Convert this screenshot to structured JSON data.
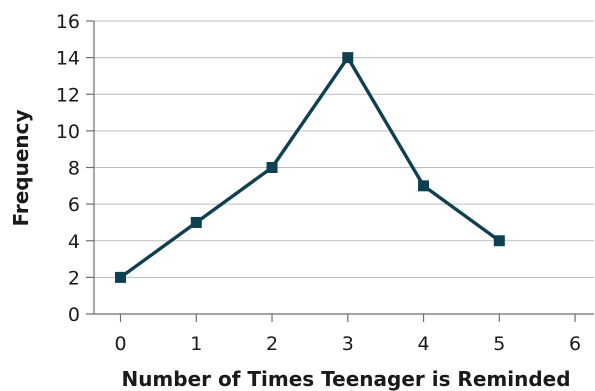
{
  "chart_data": {
    "type": "line",
    "title": "",
    "xlabel": "Number of Times Teenager is Reminded",
    "ylabel": "Frequency",
    "x": [
      0,
      1,
      2,
      3,
      4,
      5
    ],
    "y": [
      2,
      5,
      8,
      14,
      7,
      4
    ],
    "xlim": [
      -0.35,
      6.25
    ],
    "ylim": [
      0,
      16
    ],
    "xticks": [
      0,
      1,
      2,
      3,
      4,
      5,
      6
    ],
    "yticks": [
      0,
      2,
      4,
      6,
      8,
      10,
      12,
      14,
      16
    ],
    "grid": "horizontal",
    "marker": "square",
    "colors": {
      "series": "#0d4050",
      "grid": "#bdbdbd",
      "axis": "#6e6e6e"
    }
  }
}
